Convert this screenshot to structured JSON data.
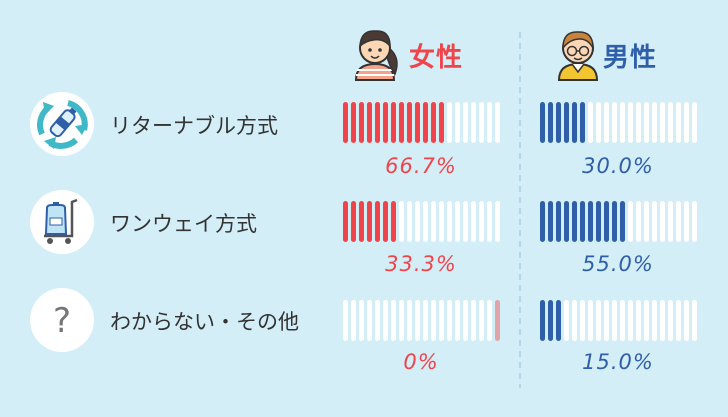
{
  "colors": {
    "background": "#d4eef8",
    "female": "#f0444b",
    "female_zero": "#e0a3a8",
    "male": "#2f5fa8",
    "bar_empty": "#ffffff",
    "divider": "#a7cfe6",
    "label_text": "#333333"
  },
  "legend": {
    "female": {
      "label": "女性",
      "icon": "girl-icon"
    },
    "male": {
      "label": "男性",
      "icon": "boy-icon"
    }
  },
  "chart_data": {
    "type": "bar",
    "orientation": "horizontal",
    "categories": [
      "リターナブル方式",
      "ワンウェイ方式",
      "わからない・その他"
    ],
    "category_icons": [
      "recycle-bottle-icon",
      "water-jug-cart-icon",
      "question-icon"
    ],
    "series": [
      {
        "name": "女性",
        "values": [
          66.7,
          33.3,
          0
        ],
        "labels": [
          "66.7%",
          "33.3%",
          "0%"
        ]
      },
      {
        "name": "男性",
        "values": [
          30.0,
          55.0,
          15.0
        ],
        "labels": [
          "30.0%",
          "55.0%",
          "15.0%"
        ]
      }
    ],
    "segments_per_bar": 20,
    "xlim": [
      0,
      100
    ],
    "unit": "%"
  }
}
